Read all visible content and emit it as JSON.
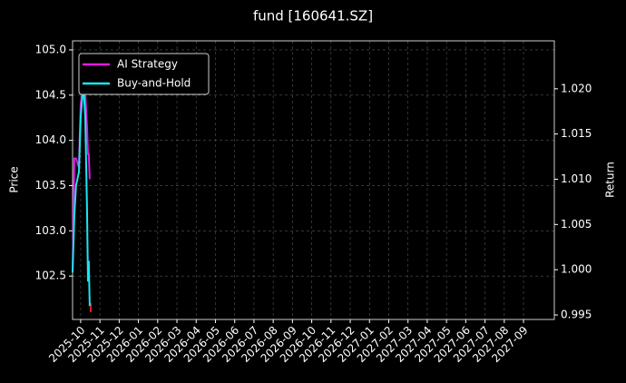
{
  "chart_data": {
    "type": "line",
    "title": "fund [160641.SZ]",
    "y_label": "Price",
    "y2_label": "Return",
    "xlim": [
      -0.42,
      24.6
    ],
    "xticks": [
      {
        "value": 0,
        "label": "2025-10"
      },
      {
        "value": 1,
        "label": "2025-11"
      },
      {
        "value": 2,
        "label": "2025-12"
      },
      {
        "value": 3,
        "label": "2026-01"
      },
      {
        "value": 4,
        "label": "2026-02"
      },
      {
        "value": 5,
        "label": "2026-03"
      },
      {
        "value": 6,
        "label": "2026-04"
      },
      {
        "value": 7,
        "label": "2026-05"
      },
      {
        "value": 8,
        "label": "2026-06"
      },
      {
        "value": 9,
        "label": "2026-07"
      },
      {
        "value": 10,
        "label": "2026-08"
      },
      {
        "value": 11,
        "label": "2026-09"
      },
      {
        "value": 12,
        "label": "2026-10"
      },
      {
        "value": 13,
        "label": "2026-11"
      },
      {
        "value": 14,
        "label": "2026-12"
      },
      {
        "value": 15,
        "label": "2027-01"
      },
      {
        "value": 16,
        "label": "2027-02"
      },
      {
        "value": 17,
        "label": "2027-03"
      },
      {
        "value": 18,
        "label": "2027-04"
      },
      {
        "value": 19,
        "label": "2027-05"
      },
      {
        "value": 20,
        "label": "2027-06"
      },
      {
        "value": 21,
        "label": "2027-07"
      },
      {
        "value": 22,
        "label": "2027-08"
      },
      {
        "value": 23,
        "label": "2027-09"
      }
    ],
    "ylim": [
      102.02,
      105.1
    ],
    "yticks": [
      {
        "value": 102.5,
        "label": "102.5"
      },
      {
        "value": 103,
        "label": "103.0"
      },
      {
        "value": 103.5,
        "label": "103.5"
      },
      {
        "value": 104,
        "label": "104.0"
      },
      {
        "value": 104.5,
        "label": "104.5"
      },
      {
        "value": 105,
        "label": "105.0"
      }
    ],
    "y2lim": [
      0.9945,
      1.0253
    ],
    "y2ticks": [
      {
        "value": 0.995,
        "label": "0.995"
      },
      {
        "value": 1,
        "label": "1.000"
      },
      {
        "value": 1.005,
        "label": "1.005"
      },
      {
        "value": 1.01,
        "label": "1.010"
      },
      {
        "value": 1.015,
        "label": "1.015"
      },
      {
        "value": 1.02,
        "label": "1.020"
      }
    ],
    "grid": true,
    "legend": "upper left",
    "series": [
      {
        "color": "#d62728",
        "x": [
          0.52,
          0.52
        ],
        "values": [
          102.2,
          102.1
        ]
      },
      {
        "name": "AI Strategy",
        "color": "#e619e6",
        "axis": "y2",
        "x": [
          -0.42,
          -0.33,
          -0.24,
          -0.09,
          0,
          0.14,
          0.24,
          0.33,
          0.38,
          0.42,
          0.47
        ],
        "values": [
          0.9997,
          1.0123,
          1.0123,
          1.0113,
          1.0183,
          1.0205,
          1.0195,
          1.0158,
          1.0128,
          1.0128,
          1.01
        ]
      },
      {
        "name": "Buy-and-Hold",
        "color": "#19e6f0",
        "axis": "y2",
        "x": [
          -0.42,
          -0.33,
          -0.24,
          -0.09,
          0,
          0.14,
          0.24,
          0.33,
          0.38,
          0.42,
          0.47
        ],
        "values": [
          0.9997,
          1.006,
          1.0093,
          1.0108,
          1.0168,
          1.0205,
          1.0168,
          1.0067,
          0.9987,
          1.001,
          0.996
        ]
      }
    ]
  }
}
